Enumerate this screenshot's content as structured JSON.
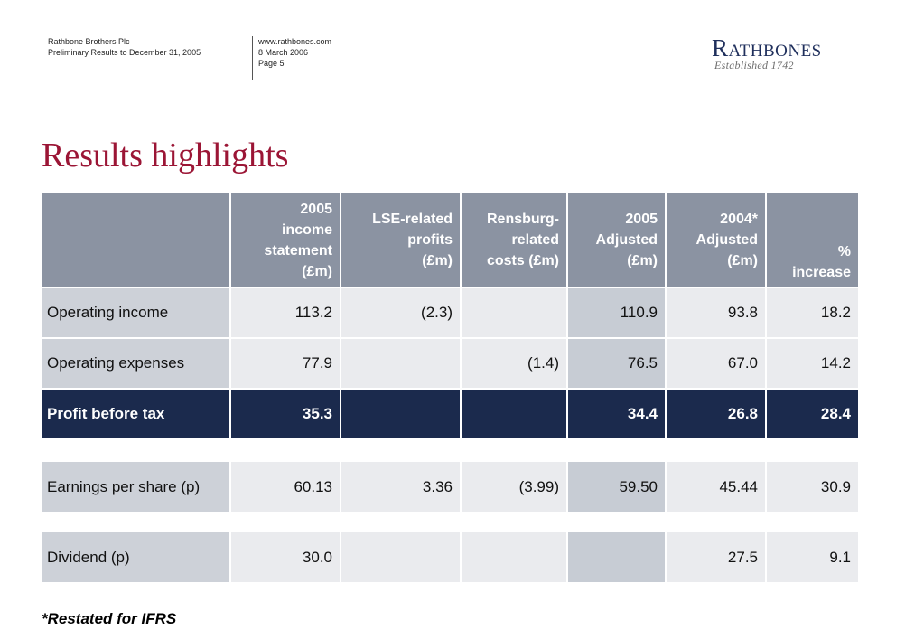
{
  "header": {
    "col1": [
      "Rathbone Brothers Plc",
      "Preliminary Results to December 31, 2005"
    ],
    "col2": [
      "www.rathbones.com",
      "8 March 2006",
      "Page 5"
    ]
  },
  "logo": {
    "name": "Rathbones",
    "established": "Established 1742"
  },
  "page_title": "Results highlights",
  "table": {
    "headers": [
      "",
      "2005 income statement (£m)",
      "LSE-related profits (£m)",
      "Rensburg-related costs (£m)",
      "2005 Adjusted (£m)",
      "2004* Adjusted (£m)",
      "% increase"
    ],
    "headers_lines": [
      [],
      [
        "2005",
        "income",
        "statement",
        "(£m)"
      ],
      [
        "LSE-related",
        "profits",
        "(£m)"
      ],
      [
        "Rensburg-",
        "related",
        "costs (£m)"
      ],
      [
        "2005",
        "Adjusted",
        "(£m)"
      ],
      [
        "2004*",
        "Adjusted",
        "(£m)"
      ],
      [
        "%",
        "increase"
      ]
    ],
    "rows": [
      [
        "Operating income",
        "113.2",
        "(2.3)",
        "",
        "110.9",
        "93.8",
        "18.2"
      ],
      [
        "Operating expenses",
        "77.9",
        "",
        "(1.4)",
        "76.5",
        "67.0",
        "14.2"
      ],
      [
        "Profit before tax",
        "35.3",
        "",
        "",
        "34.4",
        "26.8",
        "28.4"
      ]
    ],
    "eps_row": [
      "Earnings per share (p)",
      "60.13",
      "3.36",
      "(3.99)",
      "59.50",
      "45.44",
      "30.9"
    ],
    "dividend_row": [
      "Dividend (p)",
      "30.0",
      "",
      "",
      "",
      "27.5",
      "9.1"
    ]
  },
  "footnote": "*Restated for IFRS",
  "colors": {
    "title": "#9b1535",
    "header_bg": "#8b93a2",
    "highlight_row_bg": "#1b2a4d",
    "logo": "#1f2f5c"
  }
}
